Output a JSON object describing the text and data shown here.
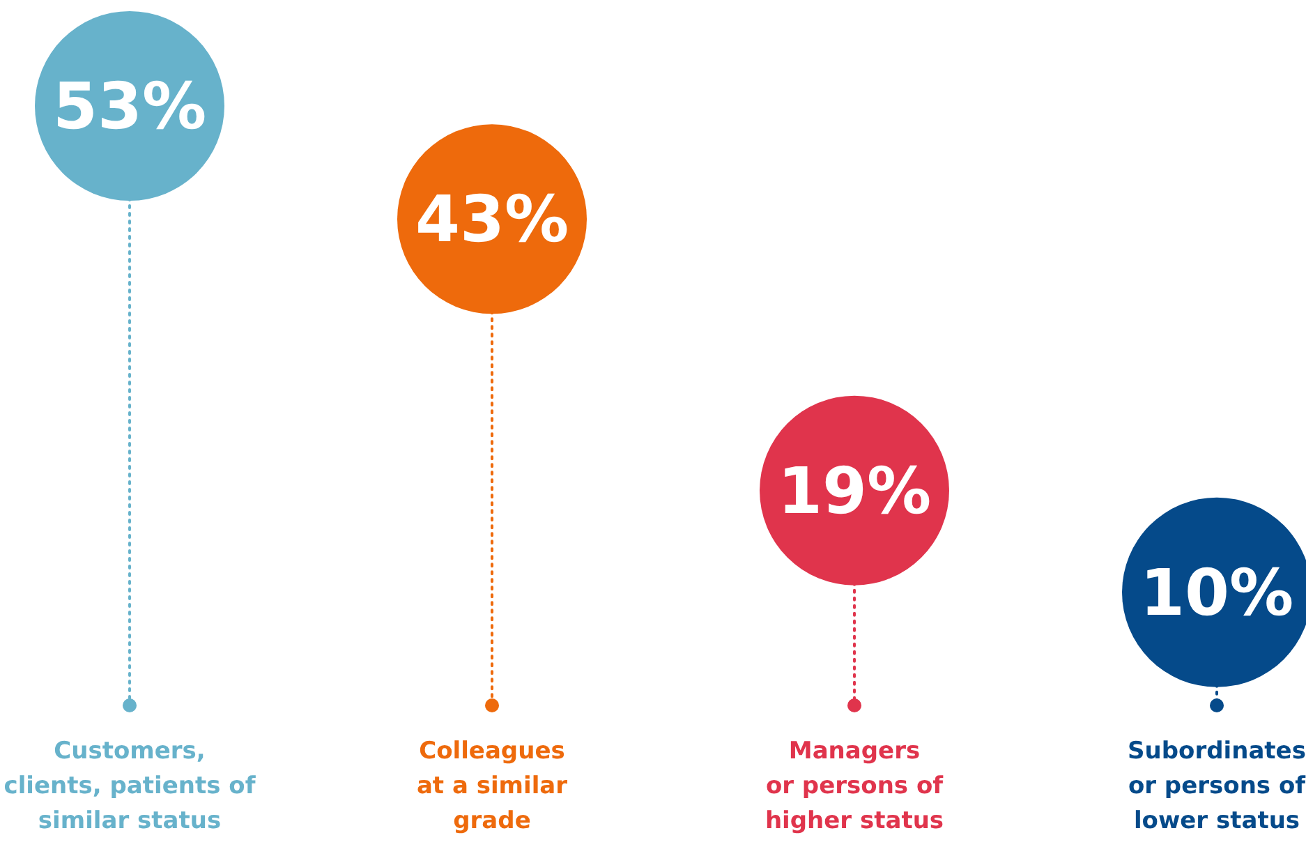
{
  "chart_data": {
    "type": "lollipop",
    "categories": [
      "Customers,\nclients, patients of\nsimilar status",
      "Colleagues\nat a similar\ngrade",
      "Managers\nor persons of\nhigher status",
      "Subordinates\nor persons of\nlower status"
    ],
    "values": [
      53,
      43,
      19,
      10
    ],
    "colors": [
      "#67b2cb",
      "#ee6a0c",
      "#e0344c",
      "#054a8a"
    ],
    "data_labels": true,
    "value_labels": [
      "53%",
      "43%",
      "19%",
      "10%"
    ],
    "line_style": "dotted",
    "marker": "circle",
    "grid": false,
    "legend": false
  }
}
